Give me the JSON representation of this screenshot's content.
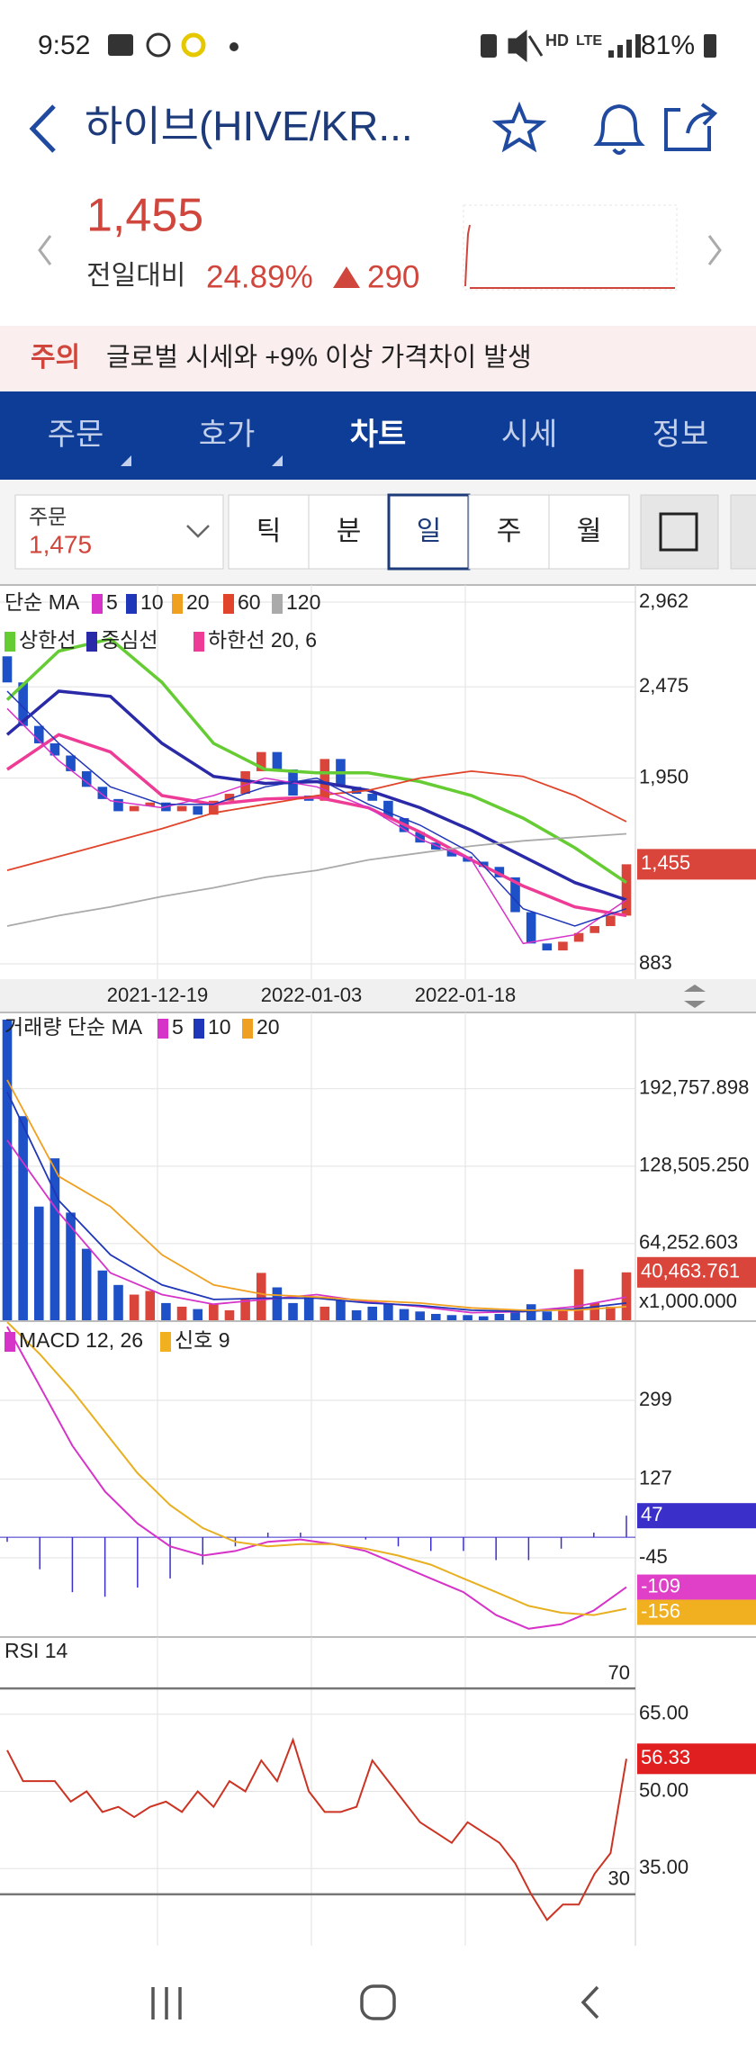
{
  "status_bar": {
    "time": "9:52",
    "hd": "HD",
    "lte": "LTE",
    "battery": "81%"
  },
  "header": {
    "title": "하이브(HIVE/KR..."
  },
  "quote": {
    "price": "1,455",
    "change_label": "전일대비",
    "change_percent": "24.89%",
    "change_amount": "290"
  },
  "notice": {
    "tag": "주의",
    "text": "글로벌 시세와 +9% 이상 가격차이 발생"
  },
  "tabs": {
    "items": [
      "주문",
      "호가",
      "차트",
      "시세",
      "정보"
    ],
    "active": "차트"
  },
  "toolbar": {
    "order_label": "주문",
    "order_price": "1,475",
    "periods": [
      "틱",
      "분",
      "일",
      "주",
      "월"
    ],
    "active_period": "일"
  },
  "price_chart": {
    "type": "candlestick",
    "legend_ma": "단순 MA",
    "ma_periods": [
      5,
      10,
      20,
      60,
      120
    ],
    "ma_colors": [
      "#d633c8",
      "#2036b8",
      "#f0a020",
      "#e0442a",
      "#aaaaaa"
    ],
    "envelope": [
      {
        "name": "상한선",
        "color": "#66cc33"
      },
      {
        "name": "중심선",
        "color": "#2a2aa8"
      },
      {
        "name": "하한선 20, 6",
        "color": "#ee3c96"
      }
    ],
    "dates": [
      "2021-12-19",
      "2022-01-03",
      "2022-01-18"
    ],
    "ylim": [
      795,
      3060
    ],
    "yticks": [
      {
        "value": 2962,
        "label": "2,962"
      },
      {
        "value": 2475,
        "label": "2,475"
      },
      {
        "value": 1950,
        "label": "1,950"
      },
      883
    ],
    "up_color": "#d9443b",
    "down_color": "#1e50c8",
    "open": [
      2650,
      2500,
      2250,
      2150,
      2080,
      1990,
      1900,
      1830,
      1760,
      1790,
      1810,
      1760,
      1790,
      1740,
      1820,
      1860,
      1990,
      2100,
      2000,
      1850,
      1820,
      2060,
      1900,
      1860,
      1820,
      1720,
      1640,
      1580,
      1540,
      1500,
      1470,
      1440,
      1380,
      1180,
      1000,
      960,
      1010,
      1060,
      1100,
      1160
    ],
    "close": [
      2500,
      2250,
      2150,
      2080,
      1990,
      1900,
      1830,
      1760,
      1790,
      1810,
      1760,
      1790,
      1740,
      1820,
      1860,
      1990,
      2100,
      2000,
      1850,
      1820,
      2060,
      1900,
      1860,
      1820,
      1720,
      1640,
      1580,
      1540,
      1500,
      1470,
      1440,
      1380,
      1180,
      1000,
      960,
      1010,
      1060,
      1100,
      1160,
      1455
    ],
    "series": [
      {
        "name": "상한선",
        "color": "#66cc33",
        "width": 3.5,
        "values": [
          2400,
          2680,
          2750,
          2500,
          2150,
          2000,
          1980,
          1980,
          1930,
          1850,
          1720,
          1550,
          1350
        ]
      },
      {
        "name": "중심선",
        "color": "#2a2aa8",
        "width": 3.5,
        "values": [
          2200,
          2450,
          2420,
          2150,
          1960,
          1920,
          1930,
          1880,
          1780,
          1650,
          1500,
          1350,
          1250
        ]
      },
      {
        "name": "하한선 20, 6",
        "color": "#ee3c96",
        "width": 3.5,
        "values": [
          2000,
          2200,
          2100,
          1850,
          1800,
          1830,
          1840,
          1780,
          1640,
          1480,
          1330,
          1210,
          1160
        ]
      },
      {
        "name": "60",
        "color": "#e0442a",
        "width": 1.8,
        "values": [
          1420,
          1500,
          1580,
          1660,
          1750,
          1800,
          1850,
          1880,
          1950,
          1990,
          1960,
          1850,
          1700
        ]
      },
      {
        "name": "120",
        "color": "#aaaaaa",
        "width": 1.8,
        "values": [
          1100,
          1160,
          1210,
          1270,
          1320,
          1380,
          1420,
          1480,
          1520,
          1560,
          1590,
          1610,
          1630
        ]
      },
      {
        "name": "5",
        "color": "#d633c8",
        "width": 1.5,
        "values": [
          2350,
          2050,
          1820,
          1780,
          1850,
          1950,
          1900,
          1780,
          1600,
          1480,
          1000,
          1050,
          1250
        ]
      },
      {
        "name": "10",
        "color": "#2036b8",
        "width": 1.5,
        "values": [
          2450,
          2150,
          1900,
          1800,
          1800,
          1900,
          1950,
          1800,
          1680,
          1520,
          1200,
          1100,
          1200
        ]
      }
    ],
    "last_tag": {
      "value": 1455,
      "label": "1,455",
      "color": "#d9443b"
    }
  },
  "volume_chart": {
    "type": "bar",
    "legend": "거래량 단순 MA",
    "ma_periods": [
      5,
      10,
      20
    ],
    "ma_colors": [
      "#d633c8",
      "#2036b8",
      "#f0a020"
    ],
    "ylim": [
      0,
      256000
    ],
    "yticks": [
      {
        "value": 192757.898,
        "label": "192,757.898"
      },
      {
        "value": 128505.25,
        "label": "128,505.250"
      },
      {
        "value": 64252.603,
        "label": "64,252.603"
      }
    ],
    "values": [
      250000,
      170000,
      95000,
      135000,
      90000,
      60000,
      42000,
      30000,
      22000,
      25000,
      15000,
      12000,
      10000,
      14000,
      9000,
      18000,
      40000,
      28000,
      15000,
      20000,
      12000,
      17000,
      9000,
      12000,
      14000,
      10000,
      8000,
      6000,
      5000,
      5000,
      4000,
      6000,
      9000,
      14000,
      8000,
      10000,
      43000,
      15000,
      12000,
      40463.761
    ],
    "series": [
      {
        "name": "5",
        "color": "#d633c8",
        "values": [
          150000,
          90000,
          40000,
          22000,
          14000,
          18000,
          22000,
          16000,
          12000,
          7000,
          8000,
          12000,
          20000
        ]
      },
      {
        "name": "10",
        "color": "#2036b8",
        "values": [
          190000,
          100000,
          55000,
          30000,
          18000,
          19000,
          19000,
          15000,
          13000,
          9000,
          8000,
          10000,
          15000
        ]
      },
      {
        "name": "20",
        "color": "#f0a020",
        "values": [
          200000,
          120000,
          95000,
          55000,
          30000,
          22000,
          20000,
          17000,
          15000,
          11000,
          9000,
          9000,
          12000
        ]
      }
    ],
    "last_tag": {
      "value": 40463.761,
      "label": "40,463.761",
      "color": "#d9443b"
    },
    "unit": "x1,000.000"
  },
  "macd_chart": {
    "type": "line",
    "legend_macd": "MACD 12, 26",
    "legend_signal": "신호 9",
    "ylim": [
      -218,
      472
    ],
    "yticks": [
      299,
      127,
      -45
    ],
    "histogram": {
      "color": "#3a2fc8",
      "values": [
        -10,
        -70,
        -120,
        -130,
        -110,
        -90,
        -60,
        -20,
        10,
        10,
        0,
        -5,
        -20,
        -30,
        -30,
        -50,
        -50,
        -25,
        10,
        47
      ]
    },
    "series": [
      {
        "name": "MACD 12, 26",
        "color": "#d633c8",
        "values": [
          460,
          330,
          200,
          100,
          30,
          -20,
          -40,
          -30,
          -10,
          -5,
          -15,
          -30,
          -60,
          -90,
          -120,
          -170,
          -200,
          -190,
          -160,
          -109
        ]
      },
      {
        "name": "신호 9",
        "color": "#e8b020",
        "values": [
          470,
          400,
          320,
          230,
          140,
          70,
          20,
          -10,
          -20,
          -15,
          -15,
          -25,
          -40,
          -60,
          -90,
          -120,
          -150,
          -165,
          -170,
          -156
        ]
      }
    ],
    "tags": [
      {
        "value": 47,
        "color": "#3a2fc8"
      },
      {
        "value": -109,
        "color": "#e040c8"
      },
      {
        "value": -156,
        "color": "#f0b020"
      }
    ]
  },
  "rsi_chart": {
    "type": "line",
    "legend": "RSI 14",
    "ylim": [
      20,
      80
    ],
    "yticks": [
      {
        "value": 65,
        "label": "65.00"
      },
      {
        "value": 50,
        "label": "50.00"
      },
      {
        "value": 35,
        "label": "35.00"
      }
    ],
    "levels": [
      70,
      30
    ],
    "color": "#cc3322",
    "values": [
      58,
      52,
      52,
      52,
      48,
      50,
      46,
      47,
      45,
      47,
      48,
      46,
      50,
      47,
      52,
      50,
      56,
      52,
      60,
      50,
      46,
      46,
      47,
      56,
      52,
      48,
      44,
      42,
      40,
      44,
      42,
      40,
      36,
      30,
      25,
      28,
      28,
      34,
      38,
      56.33
    ],
    "last_tag": {
      "value": 56.33,
      "label": "56.33",
      "color": "#e02020"
    }
  }
}
